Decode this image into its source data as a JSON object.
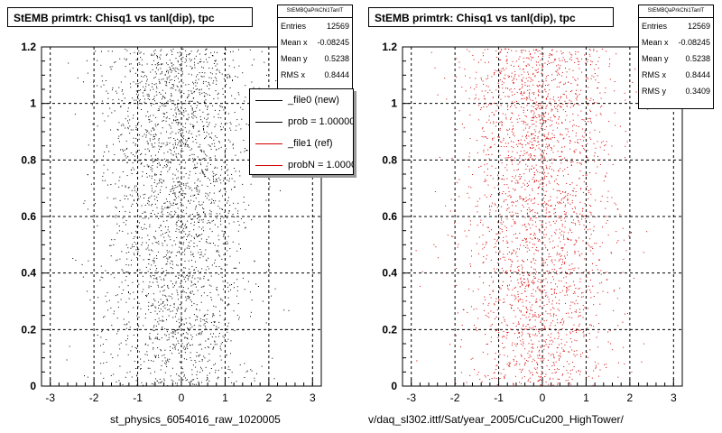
{
  "chart_data": [
    {
      "type": "scatter",
      "title": "StEMB primtrk: Chisq1 vs tanl(dip), tpc",
      "xlabel": "st_physics_6054016_raw_1020005",
      "ylabel": "",
      "xlim": [
        -3.2,
        3.2
      ],
      "ylim": [
        0,
        1.2
      ],
      "x_ticks": [
        "-3",
        "-2",
        "-1",
        "0",
        "1",
        "2",
        "3"
      ],
      "y_ticks": [
        "0",
        "0.2",
        "0.4",
        "0.6",
        "0.8",
        "1",
        "1.2"
      ],
      "grid": true,
      "marker_color": "#000000",
      "stats": {
        "name": "StEMBQaPrkChi1TanlT",
        "entries": "12569",
        "mean_x": "-0.08245",
        "mean_y": "0.5238",
        "rms_x": "0.8444"
      },
      "legend": {
        "placement": "top-right",
        "entries": [
          {
            "label": "_file0 (new)",
            "color": "#000000"
          },
          {
            "label": "prob = 1.000000",
            "color": "#000000"
          },
          {
            "label": "_file1 (ref)",
            "color": "#d40000"
          },
          {
            "label": "probN = 1.000000",
            "color": "#d40000"
          }
        ]
      }
    },
    {
      "type": "scatter",
      "title": "StEMB primtrk: Chisq1 vs tanl(dip), tpc",
      "xlabel": "v/daq_sl302.ittf/Sat/year_2005/CuCu200_HighTower/",
      "ylabel": "",
      "xlim": [
        -3.2,
        3.2
      ],
      "ylim": [
        0,
        1.2
      ],
      "x_ticks": [
        "-3",
        "-2",
        "-1",
        "0",
        "1",
        "2",
        "3"
      ],
      "y_ticks": [
        "0",
        "0.2",
        "0.4",
        "0.6",
        "0.8",
        "1",
        "1.2"
      ],
      "grid": true,
      "marker_color": "#d40000",
      "stats": {
        "name": "StEMBQaPrkChi1TanlT",
        "entries": "12569",
        "mean_x": "-0.08245",
        "mean_y": "0.5238",
        "rms_x": "0.8444",
        "rms_y": "0.3409"
      }
    }
  ],
  "labels": {
    "entries": "Entries",
    "mean_x": "Mean x",
    "mean_y": "Mean y",
    "rms_x": "RMS x",
    "rms_y": "RMS y"
  }
}
